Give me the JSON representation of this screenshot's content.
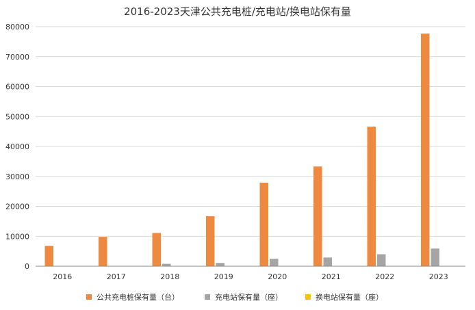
{
  "chart_data": {
    "type": "bar",
    "title": "2016-2023天津公共充电桩/充电站/换电站保有量",
    "categories": [
      "2016",
      "2017",
      "2018",
      "2019",
      "2020",
      "2021",
      "2022",
      "2023"
    ],
    "ylim": [
      0,
      80000
    ],
    "yticks": [
      0,
      10000,
      20000,
      30000,
      40000,
      50000,
      60000,
      70000,
      80000
    ],
    "grid": true,
    "legend_position": "bottom",
    "series": [
      {
        "name": "公共充电桩保有量（台）",
        "color": "#ED8A3F",
        "values": [
          6800,
          9800,
          11100,
          16700,
          27900,
          33300,
          46600,
          77700
        ]
      },
      {
        "name": "充电站保有量（座）",
        "color": "#A5A5A5",
        "values": [
          0,
          0,
          800,
          1100,
          2500,
          2900,
          4000,
          5900
        ]
      },
      {
        "name": "换电站保有量（座）",
        "color": "#FFC000",
        "values": [
          0,
          0,
          0,
          0,
          0,
          0,
          0,
          0
        ]
      }
    ]
  }
}
